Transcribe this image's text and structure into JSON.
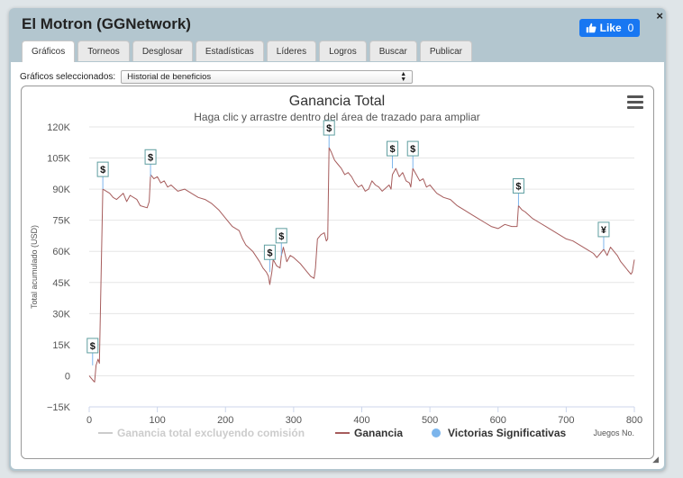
{
  "window": {
    "title": "El Motron (GGNetwork)",
    "close_label": "×"
  },
  "like": {
    "label": "Like",
    "count": "0"
  },
  "tabs": [
    "Gráficos",
    "Torneos",
    "Desglosar",
    "Estadísticas",
    "Líderes",
    "Logros",
    "Buscar",
    "Publicar"
  ],
  "selector": {
    "label": "Gráficos seleccionados:",
    "value": "Historial de beneficios"
  },
  "chart_data": {
    "type": "line",
    "title": "Ganancia Total",
    "subtitle": "Haga clic y arrastre dentro del área de trazado para ampliar",
    "ylabel": "Total acumulado (USD)",
    "xlabel": "Juegos No.",
    "xlim": [
      0,
      800
    ],
    "ylim": [
      -15000,
      120000
    ],
    "x_ticks": [
      "0",
      "100",
      "200",
      "300",
      "400",
      "500",
      "600",
      "700",
      "800"
    ],
    "y_ticks": [
      "120K",
      "105K",
      "90K",
      "75K",
      "60K",
      "45K",
      "30K",
      "15K",
      "0",
      "−15K"
    ],
    "y_tick_values": [
      120000,
      105000,
      90000,
      75000,
      60000,
      45000,
      30000,
      15000,
      0,
      -15000
    ],
    "grid": "horizontal",
    "legend_position": "bottom",
    "legend": [
      {
        "name": "Ganancia total excluyendo comisión",
        "color": "#cccccc",
        "symbol": "line"
      },
      {
        "name": "Ganancia",
        "color": "#a65c5c",
        "symbol": "line"
      },
      {
        "name": "Victorias Significativas",
        "color": "#7cb5ec",
        "symbol": "circle"
      }
    ],
    "series": [
      {
        "name": "Ganancia",
        "color": "#a65c5c",
        "x": [
          0,
          5,
          8,
          10,
          13,
          15,
          20,
          30,
          35,
          40,
          50,
          55,
          60,
          70,
          75,
          85,
          88,
          90,
          95,
          100,
          105,
          110,
          115,
          120,
          130,
          140,
          150,
          160,
          170,
          180,
          190,
          200,
          210,
          220,
          225,
          230,
          240,
          250,
          255,
          260,
          263,
          265,
          268,
          270,
          275,
          280,
          282,
          285,
          290,
          295,
          300,
          310,
          315,
          320,
          325,
          330,
          332,
          335,
          340,
          345,
          348,
          350,
          352,
          355,
          360,
          365,
          370,
          375,
          380,
          385,
          390,
          395,
          400,
          405,
          410,
          415,
          420,
          425,
          430,
          440,
          443,
          445,
          450,
          455,
          460,
          465,
          470,
          472,
          475,
          480,
          485,
          490,
          495,
          500,
          510,
          520,
          530,
          540,
          550,
          560,
          570,
          580,
          590,
          600,
          610,
          620,
          628,
          630,
          635,
          640,
          650,
          660,
          670,
          680,
          690,
          700,
          710,
          720,
          730,
          740,
          745,
          750,
          755,
          760,
          765,
          770,
          775,
          780,
          785,
          790,
          795,
          797,
          800
        ],
        "values": [
          0,
          -2000,
          -3000,
          5000,
          8000,
          6000,
          90000,
          88000,
          86000,
          85000,
          88000,
          84000,
          87000,
          85000,
          82000,
          81000,
          84000,
          97000,
          95000,
          96000,
          93000,
          94000,
          91000,
          92000,
          89000,
          90000,
          88000,
          86000,
          85000,
          83000,
          80000,
          76000,
          72000,
          70000,
          66000,
          63000,
          60000,
          55000,
          52000,
          50000,
          48000,
          44000,
          50000,
          56000,
          53000,
          52000,
          58000,
          62000,
          55000,
          58000,
          57000,
          54000,
          52000,
          50000,
          48000,
          47000,
          52000,
          66000,
          68000,
          69000,
          65000,
          66000,
          110000,
          108000,
          104000,
          102000,
          100000,
          97000,
          98000,
          96000,
          93000,
          91000,
          92000,
          89000,
          90000,
          94000,
          92000,
          91000,
          89000,
          92000,
          90000,
          97000,
          100000,
          96000,
          98000,
          94000,
          93000,
          91000,
          100000,
          97000,
          94000,
          95000,
          91000,
          92000,
          88000,
          86000,
          85000,
          82000,
          80000,
          78000,
          76000,
          74000,
          72000,
          71000,
          73000,
          72000,
          72000,
          82000,
          80000,
          79000,
          76000,
          74000,
          72000,
          70000,
          68000,
          66000,
          65000,
          63000,
          61000,
          59000,
          57000,
          59000,
          61000,
          58000,
          62000,
          60000,
          58000,
          55000,
          53000,
          51000,
          49000,
          50000,
          56000
        ]
      }
    ],
    "markers": [
      {
        "x": 5,
        "y": 5000,
        "symbol": "$"
      },
      {
        "x": 20,
        "y": 90000,
        "symbol": "$"
      },
      {
        "x": 90,
        "y": 96000,
        "symbol": "$"
      },
      {
        "x": 265,
        "y": 50000,
        "symbol": "$"
      },
      {
        "x": 282,
        "y": 58000,
        "symbol": "$"
      },
      {
        "x": 352,
        "y": 110000,
        "symbol": "$"
      },
      {
        "x": 445,
        "y": 100000,
        "symbol": "$"
      },
      {
        "x": 475,
        "y": 100000,
        "symbol": "$"
      },
      {
        "x": 630,
        "y": 82000,
        "symbol": "$"
      },
      {
        "x": 755,
        "y": 61000,
        "symbol": "¥"
      }
    ]
  }
}
